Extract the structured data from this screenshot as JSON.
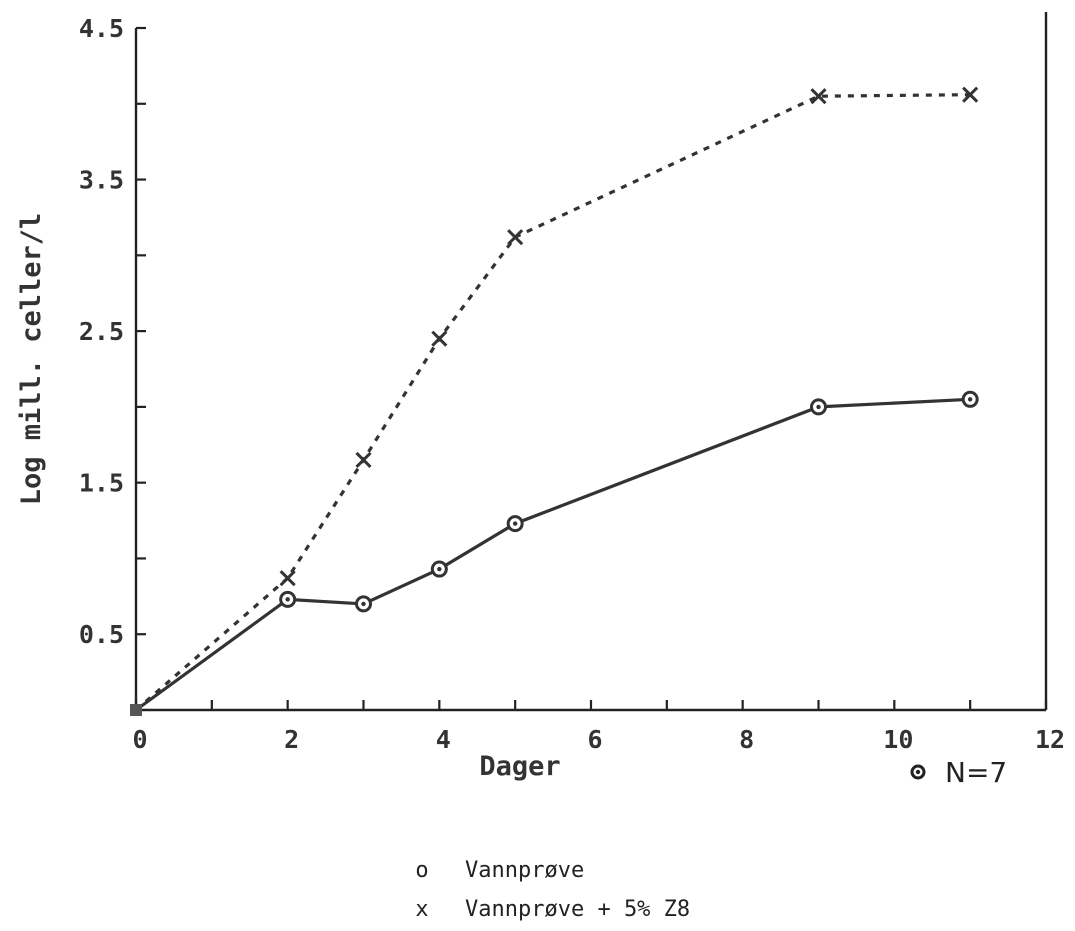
{
  "chart_data": {
    "type": "line",
    "xlabel": "Dager",
    "ylabel": "Log mill. celler/l",
    "xlim": [
      0,
      12
    ],
    "ylim": [
      0,
      4.5
    ],
    "x_ticks": [
      0,
      1,
      2,
      3,
      4,
      5,
      6,
      7,
      8,
      9,
      10,
      11,
      12
    ],
    "x_tick_labels": [
      "0",
      "2",
      "4",
      "6",
      "8",
      "10",
      "12"
    ],
    "x_tick_label_values": [
      0,
      2,
      4,
      6,
      8,
      10,
      12
    ],
    "y_ticks": [
      0.5,
      1,
      1.5,
      2,
      2.5,
      3,
      3.5,
      4,
      4.5
    ],
    "y_tick_labels": [
      "0.5",
      "1.5",
      "2.5",
      "3.5",
      "4.5"
    ],
    "y_tick_label_values": [
      0.5,
      1.5,
      2.5,
      3.5,
      4.5
    ],
    "grid": false,
    "legend_position": "bottom-center",
    "series": [
      {
        "name": "Vannprøve",
        "marker": "o",
        "style": "solid",
        "x": [
          0,
          2,
          3,
          4,
          5,
          9,
          11
        ],
        "y": [
          0,
          0.73,
          0.7,
          0.93,
          1.23,
          2.0,
          2.05
        ]
      },
      {
        "name": "Vannprøve + 5% Z8",
        "marker": "x",
        "style": "dashed",
        "x": [
          0,
          2,
          3,
          4,
          5,
          9,
          11
        ],
        "y": [
          0,
          0.87,
          1.65,
          2.45,
          3.12,
          4.05,
          4.06
        ]
      }
    ],
    "annotation": "N=7"
  },
  "legend": {
    "items": [
      {
        "symbol": "o",
        "label": "Vannprøve"
      },
      {
        "symbol": "x",
        "label": "Vannprøve + 5% Z8"
      }
    ]
  }
}
